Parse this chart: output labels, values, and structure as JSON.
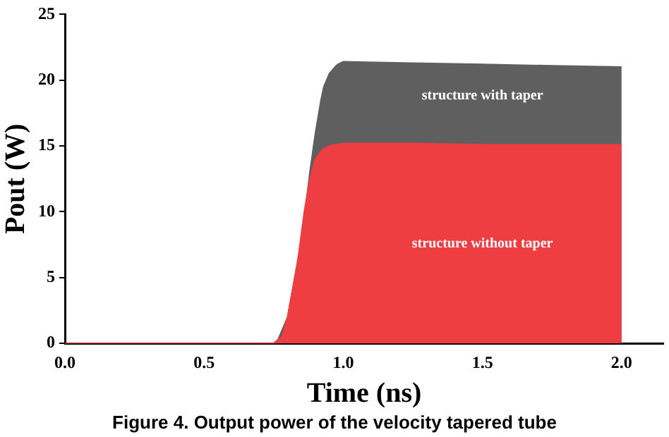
{
  "chart_data": {
    "type": "area",
    "xlabel": "Time (ns)",
    "ylabel": "Pout (W)",
    "x": [
      0,
      0.75,
      0.76,
      0.78,
      0.8,
      0.83,
      0.84,
      0.86,
      0.88,
      0.9,
      0.92,
      0.93,
      0.95,
      0.97,
      0.98,
      1.0,
      1.25,
      1.5,
      1.75,
      2.0
    ],
    "series": [
      {
        "name": "structure with taper",
        "color": "#5f5f5f",
        "values": [
          0,
          0,
          0,
          1,
          2,
          5.5,
          6.5,
          9.5,
          13,
          16,
          18.5,
          19.5,
          20.5,
          21,
          21.2,
          21.4,
          21.3,
          21.2,
          21.1,
          21
        ]
      },
      {
        "name": "structure without taper",
        "color": "#ef3e42",
        "values": [
          0,
          0,
          0.2,
          0.5,
          2,
          5.5,
          6.8,
          10,
          12.5,
          14,
          14.6,
          14.8,
          15,
          15.1,
          15.1,
          15.2,
          15.2,
          15.1,
          15.1,
          15.1
        ]
      }
    ],
    "xlim": [
      0,
      2.15
    ],
    "xticks": [
      {
        "value": 0,
        "label": "0.0"
      },
      {
        "value": 0.5,
        "label": "0.5"
      },
      {
        "value": 1,
        "label": "1.0"
      },
      {
        "value": 1.5,
        "label": "1.5"
      },
      {
        "value": 2,
        "label": "2.0"
      }
    ],
    "ylim": [
      0,
      25
    ],
    "yticks": [
      0,
      5,
      10,
      15,
      20,
      25
    ],
    "grid": false,
    "legend": false,
    "annotations": [
      "Figure 4. Output power of the velocity tapered tube"
    ]
  }
}
